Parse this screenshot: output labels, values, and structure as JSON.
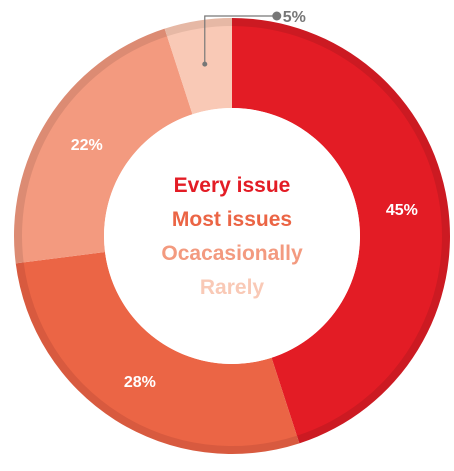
{
  "chart_data": {
    "type": "pie",
    "variant": "donut",
    "categories": [
      "Every issue",
      "Most issues",
      "Ocacasionally",
      "Rarely"
    ],
    "values": [
      45,
      28,
      22,
      5
    ],
    "value_labels": [
      "45%",
      "28%",
      "22%",
      "5%"
    ],
    "colors": [
      "#e31c25",
      "#eb6545",
      "#f39a7f",
      "#f9c9b6"
    ],
    "rim_colors": [
      "#cc1a22",
      "#d85a3f",
      "#dc8b73",
      "#e6b8a5"
    ],
    "legend_placement": "center",
    "label_color": "#ffffff",
    "callout_color": "#777777"
  }
}
